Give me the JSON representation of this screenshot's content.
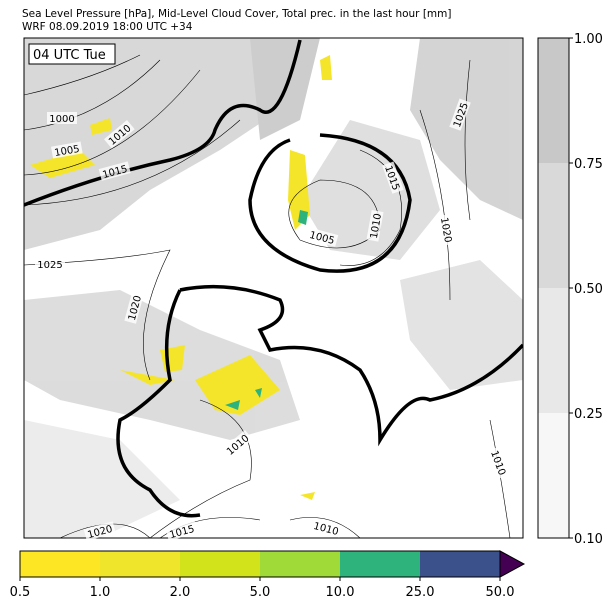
{
  "header": {
    "title": "Sea Level Pressure [hPa], Mid-Level Cloud Cover, Total prec. in the last hour [mm]",
    "subtitle": "WRF 08.09.2019 18:00 UTC +34"
  },
  "time_label": "04 UTC Tue",
  "contour_labels": [
    "1000",
    "1005",
    "1010",
    "1015",
    "1025",
    "1020",
    "1005",
    "1010",
    "1015",
    "1020",
    "1025",
    "1010",
    "1010",
    "1020",
    "1015",
    "1010"
  ],
  "cloud_colorbar": {
    "colors": [
      "#f7f7f7",
      "#e8e8e8",
      "#d9d9d9",
      "#c8c8c8"
    ],
    "ticks": [
      {
        "value": 0.1,
        "label": "0.10"
      },
      {
        "value": 0.25,
        "label": "0.25"
      },
      {
        "value": 0.5,
        "label": "0.50"
      },
      {
        "value": 0.75,
        "label": "0.75"
      },
      {
        "value": 1,
        "label": "1.00"
      }
    ]
  },
  "precip_colorbar": {
    "colors": [
      "#fde725",
      "#efe52a",
      "#d2e21b",
      "#a0da39",
      "#2eb37c",
      "#3b518b",
      "#440154"
    ],
    "ticks": [
      0.5,
      {
        "value": 1,
        "label": "1.0"
      },
      {
        "value": 2,
        "label": "2.0"
      },
      {
        "value": 5,
        "label": "5.0"
      },
      {
        "value": 10,
        "label": "10.0"
      },
      {
        "value": 25,
        "label": "25.0"
      },
      {
        "value": 50,
        "label": "50.0"
      }
    ]
  }
}
